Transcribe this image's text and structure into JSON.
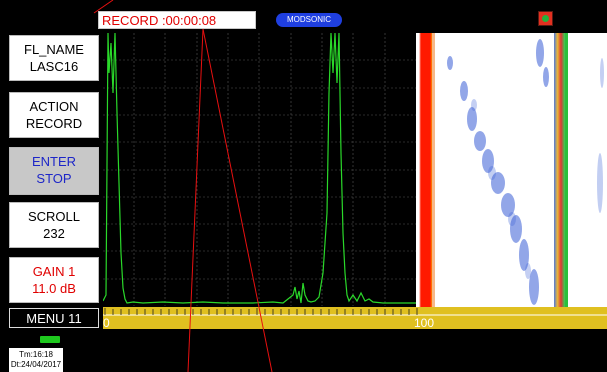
{
  "status": {
    "record_timer": "RECORD :00:00:08",
    "brand": "MODSONIC"
  },
  "colors": {
    "accent_red": "#e00000",
    "grid_green": "#2ad82a",
    "ruler_yellow": "#e0c020"
  },
  "sidebar": {
    "fl_name": {
      "label": "FL_NAME",
      "value": "LASC16"
    },
    "action": {
      "label": "ACTION",
      "value": "RECORD"
    },
    "enter": {
      "label": "ENTER",
      "value": "STOP"
    },
    "scroll": {
      "label": "SCROLL",
      "value": "232"
    },
    "gain": {
      "label": "GAIN 1",
      "value": "11.0 dB"
    },
    "menu": "MENU 11"
  },
  "footer": {
    "time": "Tm:16:18",
    "date": "Dt:24/04/2017"
  },
  "ruler": {
    "start_label": "0",
    "end_label": "100"
  },
  "icons": {
    "indicator": "target-indicator-icon",
    "battery": "battery-icon"
  }
}
